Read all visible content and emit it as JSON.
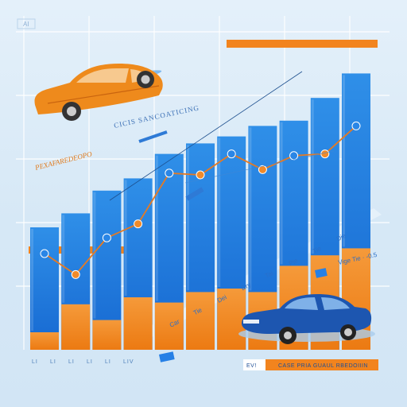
{
  "chart_data": {
    "type": "bar",
    "corner_label": "AI",
    "title": "PEXAFAREDEOPO",
    "subtitle": "CICIS SANCOATICING",
    "categories": [
      "",
      "",
      "",
      "",
      "",
      "",
      "",
      "",
      "",
      "",
      ""
    ],
    "x_tick_labels": [
      "LI",
      "LI",
      "LI",
      "LI",
      "LI",
      "LIV"
    ],
    "series": [
      {
        "values": [
          70,
          78,
          91,
          98,
          112,
          118,
          122,
          128,
          131,
          144,
          158
        ]
      },
      {
        "values": [
          10,
          26,
          17,
          30,
          27,
          33,
          35,
          33,
          48,
          54,
          58
        ]
      }
    ],
    "line": [
      55,
      43,
      64,
      72,
      101,
      100,
      112,
      103,
      111,
      112,
      128
    ],
    "ylim": [
      0,
      170
    ],
    "annotations": {
      "diag_labels": [
        "Car",
        "Tie",
        "Dei",
        "Dry",
        "Tai",
        "Pie",
        "Tie",
        "Die"
      ],
      "small_text": "Vige Tie · -0.5",
      "footer_prefix": "EV!",
      "footer_text": "CASE PRIA GUAUL RBEDOIIIN"
    },
    "colors": {
      "blue": "#1f7be0",
      "blue_dark": "#1466c9",
      "light_blue": "#3aa6ef",
      "orange": "#f2841e",
      "line": "#e67a22",
      "grid": "#ffffff",
      "car_orange": "#ee8a1c",
      "car_blue": "#1d56b0"
    },
    "icons": [
      "orange-car-icon",
      "blue-car-icon"
    ]
  }
}
